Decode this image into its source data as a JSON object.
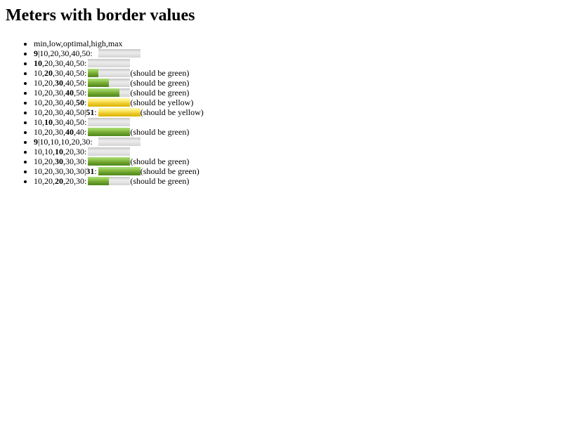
{
  "page": {
    "title": "Meters with border values"
  },
  "legend": "min,low,optimal,high,max",
  "rows": [
    {
      "parts": [
        {
          "t": "9",
          "b": true
        },
        {
          "t": "|10,20,30,40,50:"
        }
      ],
      "min": 10,
      "low": 20,
      "high": 40,
      "max": 50,
      "value": 9,
      "optimum": 30,
      "offset": 8,
      "note": ""
    },
    {
      "parts": [
        {
          "t": "10",
          "b": true
        },
        {
          "t": ",20,30,40,50:"
        }
      ],
      "min": 10,
      "low": 20,
      "high": 40,
      "max": 50,
      "value": 10,
      "optimum": 30,
      "offset": 0,
      "note": ""
    },
    {
      "parts": [
        {
          "t": "10,"
        },
        {
          "t": "20",
          "b": true
        },
        {
          "t": ",30,40,50:"
        }
      ],
      "min": 10,
      "low": 20,
      "high": 40,
      "max": 50,
      "value": 20,
      "optimum": 30,
      "offset": 0,
      "note": "(should be green)"
    },
    {
      "parts": [
        {
          "t": "10,20,"
        },
        {
          "t": "30",
          "b": true
        },
        {
          "t": ",40,50:"
        }
      ],
      "min": 10,
      "low": 20,
      "high": 40,
      "max": 50,
      "value": 30,
      "optimum": 30,
      "offset": 0,
      "note": "(should be green)"
    },
    {
      "parts": [
        {
          "t": "10,20,30,"
        },
        {
          "t": "40",
          "b": true
        },
        {
          "t": ",50:"
        }
      ],
      "min": 10,
      "low": 20,
      "high": 40,
      "max": 50,
      "value": 40,
      "optimum": 30,
      "offset": 0,
      "note": "(should be green)"
    },
    {
      "parts": [
        {
          "t": "10,20,30,40,"
        },
        {
          "t": "50",
          "b": true
        },
        {
          "t": ":"
        }
      ],
      "min": 10,
      "low": 20,
      "high": 40,
      "max": 50,
      "value": 50,
      "optimum": 30,
      "offset": 0,
      "note": "(should be yellow)"
    },
    {
      "parts": [
        {
          "t": "10,20,30,40,50|"
        },
        {
          "t": "51",
          "b": true
        },
        {
          "t": ":"
        }
      ],
      "min": 10,
      "low": 20,
      "high": 40,
      "max": 50,
      "value": 51,
      "optimum": 30,
      "offset": 0,
      "note": "(should be yellow)"
    },
    {
      "parts": [
        {
          "t": "10,"
        },
        {
          "t": "10",
          "b": true
        },
        {
          "t": ",30,40,50:"
        }
      ],
      "min": 10,
      "low": 10,
      "high": 40,
      "max": 50,
      "value": 10,
      "optimum": 30,
      "offset": 0,
      "note": ""
    },
    {
      "parts": [
        {
          "t": "10,20,30,"
        },
        {
          "t": "40",
          "b": true
        },
        {
          "t": ",40:"
        }
      ],
      "min": 10,
      "low": 20,
      "high": 40,
      "max": 40,
      "value": 40,
      "optimum": 30,
      "offset": 0,
      "note": "(should be green)"
    },
    {
      "parts": [
        {
          "t": "9",
          "b": true
        },
        {
          "t": "|10,10,10,20,30:"
        }
      ],
      "min": 10,
      "low": 10,
      "high": 20,
      "max": 30,
      "value": 9,
      "optimum": 10,
      "offset": 8,
      "note": ""
    },
    {
      "parts": [
        {
          "t": "10,10,"
        },
        {
          "t": "10",
          "b": true
        },
        {
          "t": ",20,30:"
        }
      ],
      "min": 10,
      "low": 10,
      "high": 20,
      "max": 30,
      "value": 10,
      "optimum": 10,
      "offset": 0,
      "note": ""
    },
    {
      "parts": [
        {
          "t": "10,20,"
        },
        {
          "t": "30",
          "b": true
        },
        {
          "t": ",30,30:"
        }
      ],
      "min": 10,
      "low": 20,
      "high": 30,
      "max": 30,
      "value": 30,
      "optimum": 30,
      "offset": 0,
      "note": "(should be green)"
    },
    {
      "parts": [
        {
          "t": "10,20,30,30,30|"
        },
        {
          "t": "31",
          "b": true
        },
        {
          "t": ":"
        }
      ],
      "min": 10,
      "low": 20,
      "high": 30,
      "max": 30,
      "value": 31,
      "optimum": 30,
      "offset": 0,
      "note": "(should be green)"
    },
    {
      "parts": [
        {
          "t": "10,20,"
        },
        {
          "t": "20",
          "b": true
        },
        {
          "t": ",20,30:"
        }
      ],
      "min": 10,
      "low": 20,
      "high": 20,
      "max": 30,
      "value": 20,
      "optimum": 20,
      "offset": 0,
      "note": "(should be green)"
    }
  ],
  "colors": {
    "good": "#77aa33",
    "suboptimal": "#eecc33",
    "track": "#dddddd"
  }
}
